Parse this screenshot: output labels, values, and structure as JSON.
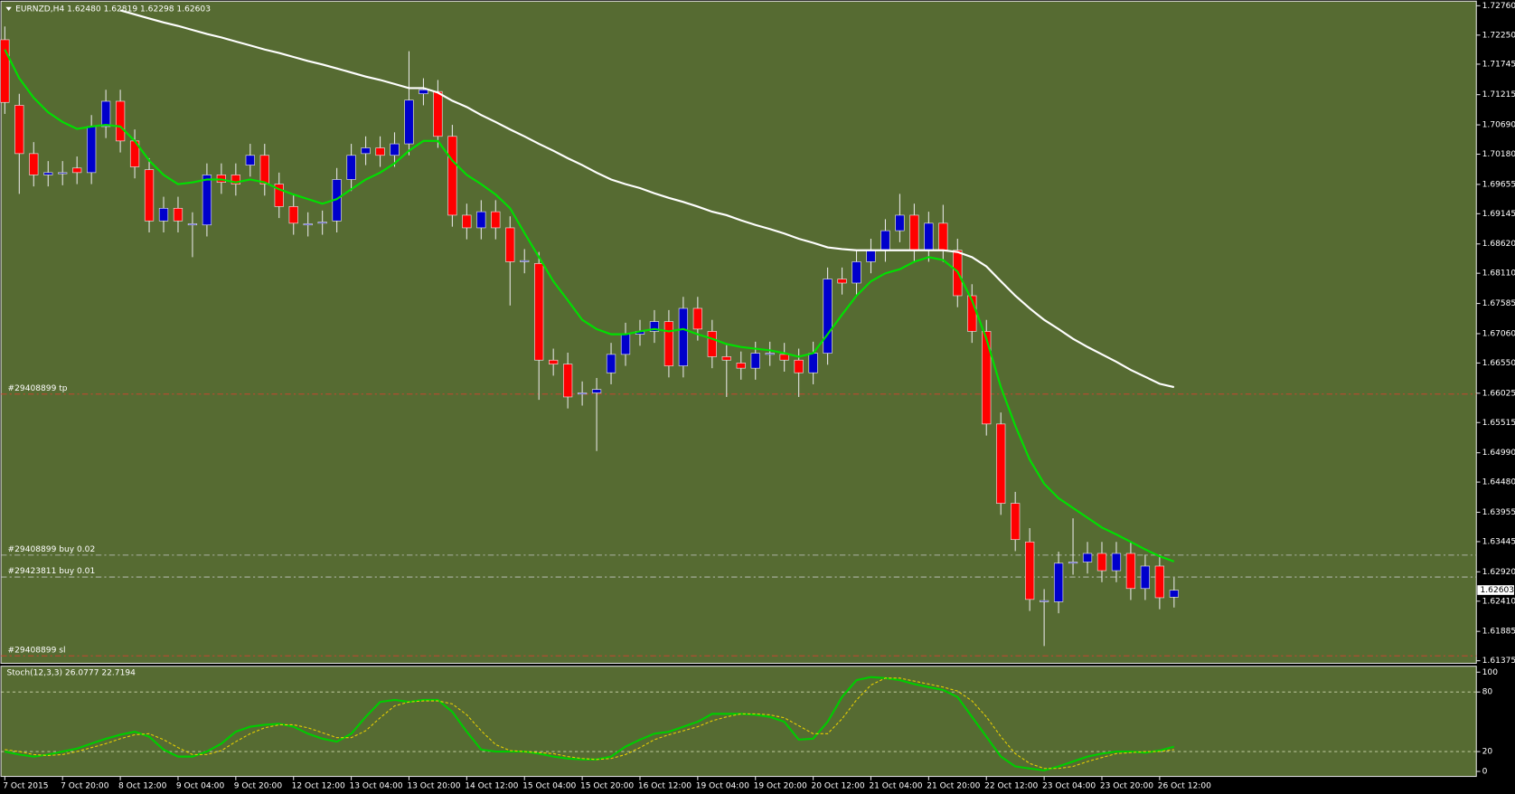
{
  "chart_data": [
    {
      "type": "candlestick",
      "title": "EURNZD,H4  1.62480 1.62819 1.62298 1.62603",
      "categories": [
        "7 Oct 2015",
        null,
        null,
        null,
        "7 Oct 20:00",
        null,
        null,
        null,
        "8 Oct 12:00",
        null,
        null,
        null,
        "9 Oct 04:00",
        null,
        null,
        null,
        "9 Oct 20:00",
        null,
        null,
        null,
        "12 Oct 12:00",
        null,
        null,
        null,
        "13 Oct 04:00",
        null,
        null,
        null,
        "13 Oct 20:00",
        null,
        null,
        null,
        "14 Oct 12:00",
        null,
        null,
        null,
        "15 Oct 04:00",
        null,
        null,
        null,
        "15 Oct 20:00",
        null,
        null,
        null,
        "16 Oct 12:00",
        null,
        null,
        null,
        "19 Oct 04:00",
        null,
        null,
        null,
        "19 Oct 20:00",
        null,
        null,
        null,
        "20 Oct 12:00",
        null,
        null,
        null,
        "21 Oct 04:00",
        null,
        null,
        null,
        "21 Oct 20:00",
        null,
        null,
        null,
        "22 Oct 12:00",
        null,
        null,
        null,
        "23 Oct 04:00",
        null,
        null,
        null,
        "23 Oct 20:00",
        null,
        null,
        null,
        "26 Oct 12:00",
        null
      ],
      "open": [
        1.7217,
        1.7103,
        1.7019,
        1.6982,
        1.6984,
        1.6994,
        1.6986,
        1.7066,
        1.711,
        1.7041,
        1.6991,
        1.6902,
        1.6924,
        1.6895,
        1.6895,
        1.6982,
        1.6982,
        1.6999,
        1.7016,
        1.6966,
        1.6927,
        1.6895,
        1.6898,
        1.6902,
        1.6974,
        1.7019,
        1.7029,
        1.7016,
        1.7036,
        1.7123,
        1.7127,
        1.7049,
        1.6912,
        1.689,
        1.6918,
        1.689,
        1.6831,
        1.6828,
        1.666,
        1.6653,
        1.6601,
        1.6603,
        1.6638,
        1.667,
        1.6705,
        1.671,
        1.6727,
        1.665,
        1.675,
        1.671,
        1.6666,
        1.6655,
        1.6646,
        1.667,
        1.667,
        1.666,
        1.6638,
        1.6672,
        1.6801,
        1.6794,
        1.6831,
        1.6851,
        1.6885,
        1.6912,
        1.6851,
        1.6898,
        1.6851,
        1.6772,
        1.671,
        1.6549,
        1.6411,
        1.6344,
        1.624,
        1.624,
        1.6307,
        1.6309,
        1.6324,
        1.6294,
        1.6324,
        1.6263,
        1.6302,
        1.6248
      ],
      "high": [
        1.724,
        1.7123,
        1.7039,
        1.7006,
        1.7006,
        1.7014,
        1.7086,
        1.713,
        1.713,
        1.7061,
        1.7011,
        1.6944,
        1.6944,
        1.6917,
        1.7002,
        1.7002,
        1.7002,
        1.7036,
        1.7036,
        1.6986,
        1.6947,
        1.6917,
        1.692,
        1.6994,
        1.7036,
        1.7049,
        1.7049,
        1.7056,
        1.7197,
        1.715,
        1.7147,
        1.7069,
        1.6932,
        1.6938,
        1.6938,
        1.691,
        1.6853,
        1.6848,
        1.668,
        1.6673,
        1.6623,
        1.6629,
        1.669,
        1.6725,
        1.673,
        1.6747,
        1.6747,
        1.677,
        1.677,
        1.673,
        1.6686,
        1.6675,
        1.6692,
        1.6692,
        1.669,
        1.668,
        1.6692,
        1.6821,
        1.6821,
        1.6851,
        1.6871,
        1.6905,
        1.6949,
        1.6932,
        1.6918,
        1.693,
        1.6871,
        1.6792,
        1.673,
        1.6569,
        1.6431,
        1.6368,
        1.6262,
        1.6327,
        1.6385,
        1.6344,
        1.6344,
        1.6344,
        1.6344,
        1.6322,
        1.6322,
        1.6282
      ],
      "low": [
        1.7088,
        1.6949,
        1.6962,
        1.6962,
        1.6964,
        1.6966,
        1.6966,
        1.7046,
        1.7021,
        1.6976,
        1.6882,
        1.6882,
        1.6882,
        1.6839,
        1.6875,
        1.6949,
        1.6946,
        1.6979,
        1.6946,
        1.6907,
        1.6878,
        1.6875,
        1.6878,
        1.6882,
        1.6954,
        1.6999,
        1.6996,
        1.6996,
        1.7016,
        1.7103,
        1.7029,
        1.6892,
        1.687,
        1.687,
        1.687,
        1.6755,
        1.6811,
        1.6591,
        1.6633,
        1.6576,
        1.6581,
        1.6502,
        1.6618,
        1.665,
        1.6685,
        1.669,
        1.663,
        1.663,
        1.6694,
        1.6646,
        1.6596,
        1.6626,
        1.6626,
        1.665,
        1.664,
        1.6596,
        1.6618,
        1.6652,
        1.6774,
        1.6774,
        1.6811,
        1.6831,
        1.6865,
        1.6831,
        1.6831,
        1.6831,
        1.6752,
        1.669,
        1.6529,
        1.6391,
        1.6328,
        1.6224,
        1.6163,
        1.622,
        1.6287,
        1.6289,
        1.6274,
        1.6274,
        1.6243,
        1.6243,
        1.6227,
        1.623
      ],
      "close": [
        1.7108,
        1.7019,
        1.6982,
        1.6986,
        1.6986,
        1.6986,
        1.7066,
        1.711,
        1.7041,
        1.6996,
        1.6902,
        1.6924,
        1.6902,
        1.6897,
        1.6982,
        1.6969,
        1.6966,
        1.7016,
        1.6966,
        1.6927,
        1.6898,
        1.6897,
        1.69,
        1.6974,
        1.7016,
        1.7029,
        1.7016,
        1.7036,
        1.7112,
        1.713,
        1.7049,
        1.6912,
        1.689,
        1.6918,
        1.689,
        1.6831,
        1.6833,
        1.666,
        1.6653,
        1.6596,
        1.6603,
        1.6609,
        1.667,
        1.6705,
        1.671,
        1.6727,
        1.665,
        1.675,
        1.6714,
        1.6666,
        1.666,
        1.6646,
        1.6672,
        1.6672,
        1.666,
        1.6638,
        1.6672,
        1.6801,
        1.6794,
        1.6831,
        1.6851,
        1.6885,
        1.6912,
        1.6851,
        1.6898,
        1.6851,
        1.6772,
        1.671,
        1.6549,
        1.6411,
        1.6348,
        1.6244,
        1.6242,
        1.6307,
        1.6309,
        1.6324,
        1.6294,
        1.6324,
        1.6263,
        1.6302,
        1.6247,
        1.626
      ],
      "up_color": "#0000cc",
      "down_color": "#ff0000",
      "series": [
        {
          "color": "#00e000",
          "values": [
            1.72,
            1.715,
            1.7116,
            1.7091,
            1.7074,
            1.7062,
            1.7066,
            1.7069,
            1.7066,
            1.7041,
            1.7007,
            1.6982,
            1.6966,
            1.6969,
            1.6974,
            1.6974,
            1.6969,
            1.6974,
            1.6969,
            1.6957,
            1.6948,
            1.694,
            1.6932,
            1.694,
            1.6957,
            1.6974,
            1.6986,
            1.7002,
            1.7024,
            1.7041,
            1.7041,
            1.7007,
            1.6982,
            1.6966,
            1.6948,
            1.6924,
            1.6881,
            1.6839,
            1.6797,
            1.6764,
            1.673,
            1.6714,
            1.6705,
            1.6705,
            1.671,
            1.6714,
            1.671,
            1.6714,
            1.6705,
            1.6697,
            1.6688,
            1.6683,
            1.668,
            1.6677,
            1.6672,
            1.6666,
            1.6672,
            1.6705,
            1.6739,
            1.6772,
            1.6797,
            1.6811,
            1.6818,
            1.6831,
            1.6839,
            1.6834,
            1.6814,
            1.6764,
            1.6697,
            1.6613,
            1.6546,
            1.6487,
            1.6445,
            1.642,
            1.6403,
            1.6386,
            1.6369,
            1.6357,
            1.6344,
            1.6331,
            1.6319,
            1.631
          ]
        },
        {
          "color": "#ffffff",
          "values": [
            null,
            null,
            null,
            null,
            null,
            null,
            null,
            null,
            1.7268,
            1.7261,
            1.7254,
            1.7247,
            1.7241,
            1.7234,
            1.7227,
            1.7221,
            1.7214,
            1.7207,
            1.72,
            1.7194,
            1.7187,
            1.718,
            1.7174,
            1.7167,
            1.716,
            1.7153,
            1.7147,
            1.714,
            1.7133,
            1.7133,
            1.7125,
            1.7111,
            1.71,
            1.7086,
            1.7074,
            1.7061,
            1.7049,
            1.7036,
            1.7024,
            1.7011,
            1.6999,
            1.6986,
            1.6974,
            1.6966,
            1.6959,
            1.695,
            1.6942,
            1.6935,
            1.6927,
            1.6918,
            1.6912,
            1.6903,
            1.6895,
            1.6888,
            1.688,
            1.6871,
            1.6864,
            1.6856,
            1.6853,
            1.6851,
            1.6851,
            1.6851,
            1.6851,
            1.6851,
            1.6851,
            1.6851,
            1.6848,
            1.6839,
            1.6823,
            1.6797,
            1.6772,
            1.675,
            1.673,
            1.6714,
            1.6697,
            1.6683,
            1.667,
            1.6657,
            1.6643,
            1.6631,
            1.6619,
            1.6613
          ]
        }
      ],
      "annotations": [
        {
          "text": "#29408899 tp",
          "value": 1.6601,
          "color": "#d84030"
        },
        {
          "text": "#29408899 buy 0.02",
          "value": 1.6321,
          "color": "#c8c8c8"
        },
        {
          "text": "#29423811 buy 0.01",
          "value": 1.6283,
          "color": "#c8c8c8"
        },
        {
          "text": "#29408899 sl",
          "value": 1.6146,
          "color": "#d84030"
        }
      ],
      "last_price": 1.62603,
      "ylim": [
        1.6133,
        1.7284
      ],
      "yticks": [
        {
          "value": 1.7276,
          "label": "1.72760"
        },
        {
          "value": 1.7225,
          "label": "1.72250"
        },
        1.71745,
        1.71215,
        {
          "value": 1.7069,
          "label": "1.70690"
        },
        {
          "value": 1.7018,
          "label": "1.70180"
        },
        1.69655,
        1.69145,
        {
          "value": 1.6862,
          "label": "1.68620"
        },
        {
          "value": 1.6811,
          "label": "1.68110"
        },
        1.67585,
        {
          "value": 1.6706,
          "label": "1.67060"
        },
        {
          "value": 1.6655,
          "label": "1.66550"
        },
        1.66025,
        1.65515,
        {
          "value": 1.6499,
          "label": "1.64990"
        },
        {
          "value": 1.6448,
          "label": "1.64480"
        },
        1.63955,
        1.63445,
        {
          "value": 1.6292,
          "label": "1.62920"
        },
        {
          "value": 1.6241,
          "label": "1.62410"
        },
        1.61885,
        1.61375
      ]
    },
    {
      "type": "line",
      "title": "Stoch(12,3,3) 26.0777 22.7194",
      "series": [
        {
          "color": "#00cc00",
          "values": [
            20,
            17,
            15,
            17,
            20,
            23,
            28,
            33,
            37,
            40,
            35,
            22,
            15,
            15,
            20,
            28,
            40,
            45,
            47,
            48,
            45,
            38,
            33,
            30,
            38,
            55,
            70,
            72,
            70,
            72,
            72,
            60,
            40,
            22,
            20,
            20,
            20,
            18,
            15,
            13,
            12,
            12,
            15,
            25,
            32,
            38,
            40,
            45,
            50,
            58,
            58,
            58,
            57,
            55,
            50,
            32,
            33,
            50,
            75,
            92,
            95,
            94,
            92,
            88,
            85,
            82,
            75,
            55,
            35,
            15,
            5,
            3,
            1,
            5,
            10,
            15,
            18,
            20,
            20,
            19,
            21,
            25
          ]
        },
        {
          "color": "#e8d000",
          "dashed": true,
          "values": [
            22,
            20,
            17,
            16,
            17,
            20,
            24,
            28,
            33,
            37,
            38,
            32,
            24,
            17,
            17,
            21,
            30,
            38,
            44,
            47,
            47,
            44,
            39,
            34,
            34,
            41,
            54,
            66,
            70,
            71,
            71,
            68,
            57,
            41,
            27,
            21,
            20,
            19,
            18,
            15,
            13,
            12,
            13,
            17,
            24,
            32,
            37,
            41,
            45,
            51,
            55,
            58,
            58,
            57,
            54,
            46,
            38,
            38,
            53,
            72,
            87,
            94,
            94,
            91,
            88,
            85,
            81,
            71,
            55,
            35,
            18,
            8,
            3,
            3,
            5,
            10,
            14,
            18,
            19,
            20,
            20,
            22
          ]
        }
      ],
      "ylim": [
        -5,
        106
      ],
      "yticks": [
        100,
        80,
        20,
        0
      ]
    }
  ]
}
